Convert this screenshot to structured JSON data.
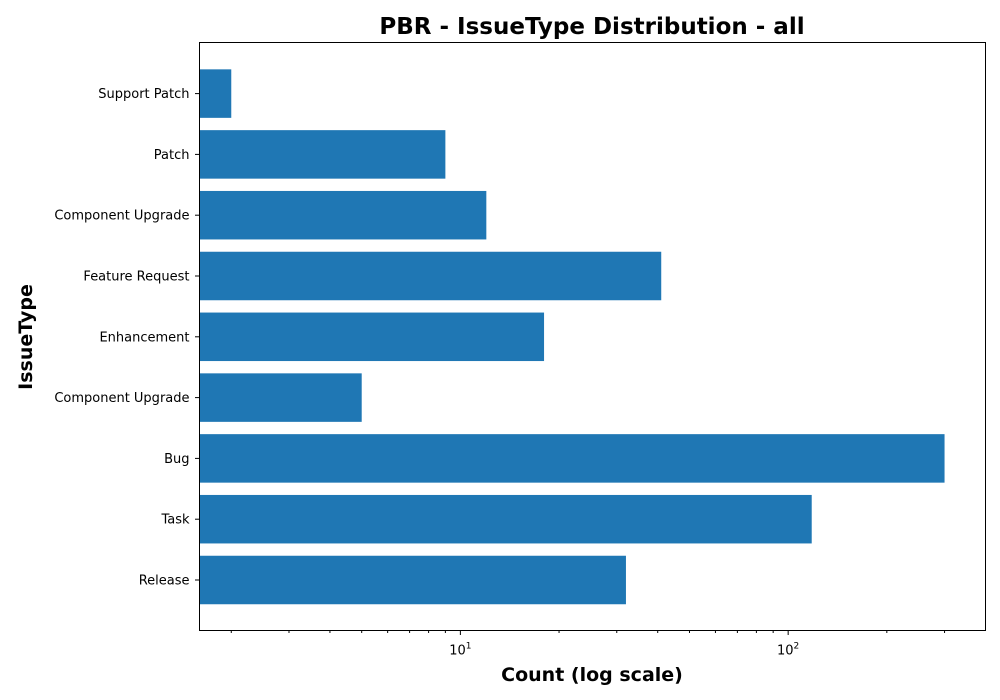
{
  "chart_data": {
    "type": "bar",
    "orientation": "horizontal",
    "title": "PBR - IssueType Distribution - all",
    "xlabel": "Count (log scale)",
    "ylabel": "IssueType",
    "x_scale": "log",
    "xlim": [
      1.6,
      400
    ],
    "x_major_ticks": [
      {
        "value": 10,
        "base": "10",
        "exp": "1"
      },
      {
        "value": 100,
        "base": "10",
        "exp": "2"
      }
    ],
    "x_minor_ticks": [
      2,
      3,
      4,
      5,
      6,
      7,
      8,
      9,
      20,
      30,
      40,
      50,
      60,
      70,
      80,
      90,
      200,
      300
    ],
    "grid": false,
    "color": "#1f77b4",
    "categories": [
      "Release",
      "Task",
      "Bug",
      "Component Upgrade",
      "Enhancement",
      "Feature Request",
      "Component  Upgrade",
      "Patch",
      "Support Patch"
    ],
    "values": [
      32,
      118,
      300,
      5,
      18,
      41,
      12,
      9,
      2
    ]
  }
}
